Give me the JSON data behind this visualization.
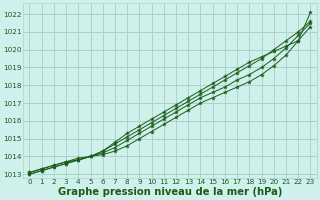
{
  "bg_color": "#cff0eb",
  "grid_color": "#aad4cc",
  "line_color": "#1a5c1a",
  "title": "Graphe pression niveau de la mer (hPa)",
  "xlim": [
    -0.5,
    23.5
  ],
  "ylim": [
    1012.8,
    1022.6
  ],
  "yticks": [
    1013,
    1014,
    1015,
    1016,
    1017,
    1018,
    1019,
    1020,
    1021,
    1022
  ],
  "xticks": [
    0,
    1,
    2,
    3,
    4,
    5,
    6,
    7,
    8,
    9,
    10,
    11,
    12,
    13,
    14,
    15,
    16,
    17,
    18,
    19,
    20,
    21,
    22,
    23
  ],
  "series": [
    [
      1013.1,
      1013.3,
      1013.5,
      1013.7,
      1013.8,
      1014.0,
      1014.1,
      1014.3,
      1014.6,
      1015.0,
      1015.4,
      1015.8,
      1016.2,
      1016.6,
      1017.0,
      1017.3,
      1017.6,
      1017.9,
      1018.2,
      1018.6,
      1019.1,
      1019.7,
      1020.5,
      1021.3
    ],
    [
      1013.1,
      1013.3,
      1013.5,
      1013.7,
      1013.9,
      1014.0,
      1014.2,
      1014.5,
      1014.9,
      1015.3,
      1015.7,
      1016.1,
      1016.5,
      1016.9,
      1017.3,
      1017.6,
      1017.9,
      1018.3,
      1018.6,
      1019.0,
      1019.5,
      1020.1,
      1020.8,
      1021.5
    ],
    [
      1013.0,
      1013.2,
      1013.4,
      1013.6,
      1013.8,
      1014.0,
      1014.3,
      1014.7,
      1015.1,
      1015.5,
      1015.9,
      1016.3,
      1016.7,
      1017.1,
      1017.5,
      1017.9,
      1018.3,
      1018.7,
      1019.1,
      1019.5,
      1020.0,
      1020.5,
      1021.0,
      1021.6
    ],
    [
      1013.0,
      1013.2,
      1013.4,
      1013.6,
      1013.8,
      1014.0,
      1014.3,
      1014.8,
      1015.3,
      1015.7,
      1016.1,
      1016.5,
      1016.9,
      1017.3,
      1017.7,
      1018.1,
      1018.5,
      1018.9,
      1019.3,
      1019.6,
      1019.9,
      1020.2,
      1020.5,
      1022.1
    ]
  ],
  "title_fontsize": 7.2,
  "tick_fontsize": 5.2,
  "title_color": "#1a5c1a",
  "tick_color": "#1a5c1a"
}
